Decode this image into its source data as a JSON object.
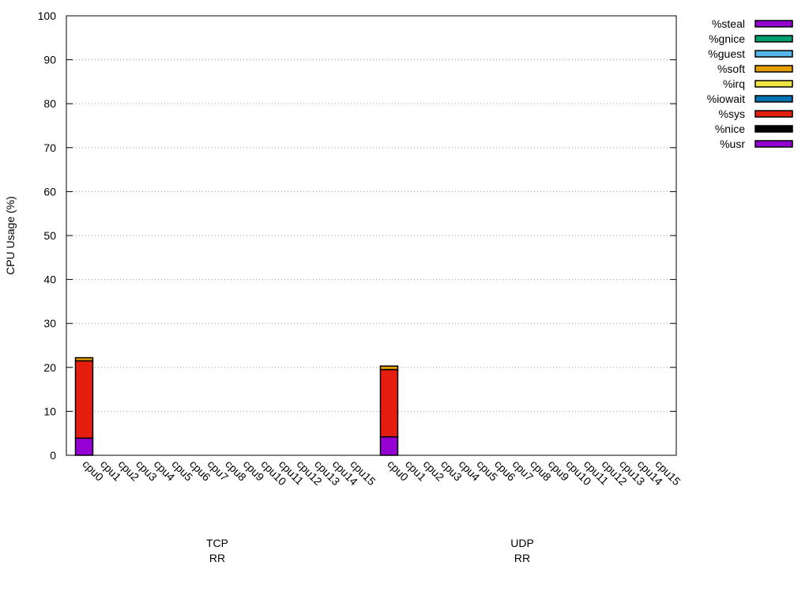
{
  "chart_data": {
    "type": "bar",
    "stacked": true,
    "ylabel": "CPU Usage (%)",
    "xlabel": "",
    "ylim": [
      0,
      100
    ],
    "yticks": [
      0,
      10,
      20,
      30,
      40,
      50,
      60,
      70,
      80,
      90,
      100
    ],
    "grid": "horizontal dotted",
    "legend_position": "right",
    "groups": [
      {
        "label_lines": [
          "TCP",
          "RR"
        ]
      },
      {
        "label_lines": [
          "UDP",
          "RR"
        ]
      }
    ],
    "categories": [
      "cpu0",
      "cpu1",
      "cpu2",
      "cpu3",
      "cpu4",
      "cpu5",
      "cpu6",
      "cpu7",
      "cpu8",
      "cpu9",
      "cpu10",
      "cpu11",
      "cpu12",
      "cpu13",
      "cpu14",
      "cpu15"
    ],
    "series": [
      {
        "name": "%usr",
        "color": "#9400d3",
        "values": [
          [
            3.9,
            0,
            0,
            0,
            0,
            0,
            0,
            0,
            0,
            0,
            0,
            0,
            0,
            0,
            0,
            0
          ],
          [
            4.2,
            0,
            0,
            0,
            0,
            0,
            0,
            0,
            0,
            0,
            0,
            0,
            0,
            0,
            0,
            0
          ]
        ]
      },
      {
        "name": "%nice",
        "color": "#000000",
        "values": [
          [
            0,
            0,
            0,
            0,
            0,
            0,
            0,
            0,
            0,
            0,
            0,
            0,
            0,
            0,
            0,
            0
          ],
          [
            0,
            0,
            0,
            0,
            0,
            0,
            0,
            0,
            0,
            0,
            0,
            0,
            0,
            0,
            0,
            0
          ]
        ]
      },
      {
        "name": "%sys",
        "color": "#e51e10",
        "values": [
          [
            17.6,
            0,
            0,
            0,
            0,
            0,
            0,
            0,
            0,
            0,
            0,
            0,
            0,
            0,
            0,
            0
          ],
          [
            15.3,
            0,
            0,
            0,
            0,
            0,
            0,
            0,
            0,
            0,
            0,
            0,
            0,
            0,
            0,
            0
          ]
        ]
      },
      {
        "name": "%iowait",
        "color": "#0072b2",
        "values": [
          [
            0,
            0,
            0,
            0,
            0,
            0,
            0,
            0,
            0,
            0,
            0,
            0,
            0,
            0,
            0,
            0
          ],
          [
            0,
            0,
            0,
            0,
            0,
            0,
            0,
            0,
            0,
            0,
            0,
            0,
            0,
            0,
            0,
            0
          ]
        ]
      },
      {
        "name": "%irq",
        "color": "#f0e442",
        "values": [
          [
            0,
            0,
            0,
            0,
            0,
            0,
            0,
            0,
            0,
            0,
            0,
            0,
            0,
            0,
            0,
            0
          ],
          [
            0,
            0,
            0,
            0,
            0,
            0,
            0,
            0,
            0,
            0,
            0,
            0,
            0,
            0,
            0,
            0
          ]
        ]
      },
      {
        "name": "%soft",
        "color": "#e69f00",
        "values": [
          [
            0.7,
            0,
            0,
            0,
            0,
            0,
            0,
            0,
            0,
            0,
            0,
            0,
            0,
            0,
            0,
            0
          ],
          [
            0.8,
            0,
            0,
            0,
            0,
            0,
            0,
            0,
            0,
            0,
            0,
            0,
            0,
            0,
            0,
            0
          ]
        ]
      },
      {
        "name": "%guest",
        "color": "#56b4e9",
        "values": [
          [
            0,
            0,
            0,
            0,
            0,
            0,
            0,
            0,
            0,
            0,
            0,
            0,
            0,
            0,
            0,
            0
          ],
          [
            0,
            0,
            0,
            0,
            0,
            0,
            0,
            0,
            0,
            0,
            0,
            0,
            0,
            0,
            0,
            0
          ]
        ]
      },
      {
        "name": "%gnice",
        "color": "#009e73",
        "values": [
          [
            0,
            0,
            0,
            0,
            0,
            0,
            0,
            0,
            0,
            0,
            0,
            0,
            0,
            0,
            0,
            0
          ],
          [
            0,
            0,
            0,
            0,
            0,
            0,
            0,
            0,
            0,
            0,
            0,
            0,
            0,
            0,
            0,
            0
          ]
        ]
      },
      {
        "name": "%steal",
        "color": "#9400d3",
        "values": [
          [
            0,
            0,
            0,
            0,
            0,
            0,
            0,
            0,
            0,
            0,
            0,
            0,
            0,
            0,
            0,
            0
          ],
          [
            0,
            0,
            0,
            0,
            0,
            0,
            0,
            0,
            0,
            0,
            0,
            0,
            0,
            0,
            0,
            0
          ]
        ]
      }
    ],
    "legend_order": [
      "%steal",
      "%gnice",
      "%guest",
      "%soft",
      "%irq",
      "%iowait",
      "%sys",
      "%nice",
      "%usr"
    ]
  }
}
